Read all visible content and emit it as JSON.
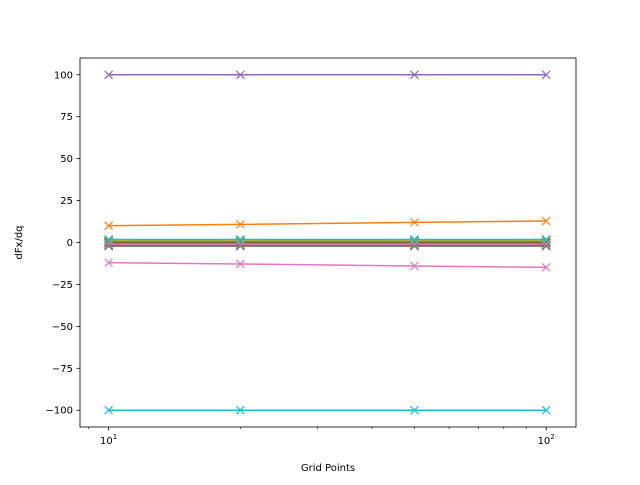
{
  "chart_data": {
    "type": "line",
    "title": "",
    "xlabel": "Grid Points",
    "ylabel": "dFx/dq",
    "xscale": "log",
    "xlim": [
      8.6,
      117
    ],
    "ylim": [
      -110,
      110
    ],
    "grid": false,
    "legend": "none",
    "marker": "x",
    "x": [
      10,
      20,
      50,
      100
    ],
    "x_ticks": [
      {
        "value": 10,
        "base": "10",
        "exp": "1"
      },
      {
        "value": 100,
        "base": "10",
        "exp": "2"
      }
    ],
    "y_ticks": [
      {
        "value": 100,
        "label": "100"
      },
      {
        "value": 75,
        "label": "75"
      },
      {
        "value": 50,
        "label": "50"
      },
      {
        "value": 25,
        "label": "25"
      },
      {
        "value": 0,
        "label": "0"
      },
      {
        "value": -25,
        "label": "−25"
      },
      {
        "value": -50,
        "label": "−50"
      },
      {
        "value": -75,
        "label": "−75"
      },
      {
        "value": -100,
        "label": "−100"
      }
    ],
    "series": [
      {
        "color": "#1f77b4",
        "values": [
          1.0,
          1.0,
          1.0,
          1.0
        ]
      },
      {
        "color": "#ff7f0e",
        "values": [
          10.0,
          10.8,
          12.0,
          12.8
        ]
      },
      {
        "color": "#2ca02c",
        "values": [
          0.5,
          0.5,
          0.5,
          0.5
        ]
      },
      {
        "color": "#d62728",
        "values": [
          -1.0,
          -1.0,
          -1.2,
          -1.2
        ]
      },
      {
        "color": "#9467bd",
        "values": [
          100,
          100,
          100,
          100
        ]
      },
      {
        "color": "#8c564b",
        "values": [
          -2.0,
          -2.0,
          -2.0,
          -2.0
        ]
      },
      {
        "color": "#e377c2",
        "values": [
          -12.0,
          -12.8,
          -14.0,
          -14.8
        ]
      },
      {
        "color": "#7f7f7f",
        "values": [
          0.0,
          0.0,
          0.0,
          0.0
        ]
      },
      {
        "color": "#bcbd22",
        "values": [
          0.3,
          0.3,
          0.3,
          0.3
        ]
      },
      {
        "color": "#17becf",
        "values": [
          -100,
          -100,
          -100,
          -100
        ]
      },
      {
        "color": "#1f77b4",
        "values": [
          1.2,
          1.2,
          1.2,
          1.2
        ]
      },
      {
        "color": "#ff7f0e",
        "values": [
          0.8,
          0.8,
          0.8,
          0.8
        ]
      },
      {
        "color": "#2ca02c",
        "values": [
          0.2,
          0.2,
          0.2,
          0.2
        ]
      },
      {
        "color": "#d62728",
        "values": [
          -0.5,
          -0.5,
          -0.5,
          -0.5
        ]
      },
      {
        "color": "#9467bd",
        "values": [
          -1.5,
          -1.5,
          -1.5,
          -1.5
        ]
      },
      {
        "color": "#8c564b",
        "values": [
          -1.8,
          -1.8,
          -1.8,
          -1.8
        ]
      },
      {
        "color": "#e377c2",
        "values": [
          -1.0,
          -1.0,
          -1.0,
          -1.0
        ]
      },
      {
        "color": "#7f7f7f",
        "values": [
          -2.2,
          -2.2,
          -2.2,
          -2.2
        ]
      },
      {
        "color": "#bcbd22",
        "values": [
          1.5,
          1.5,
          1.5,
          1.5
        ]
      },
      {
        "color": "#17becf",
        "values": [
          1.8,
          1.8,
          1.8,
          1.8
        ]
      }
    ]
  }
}
